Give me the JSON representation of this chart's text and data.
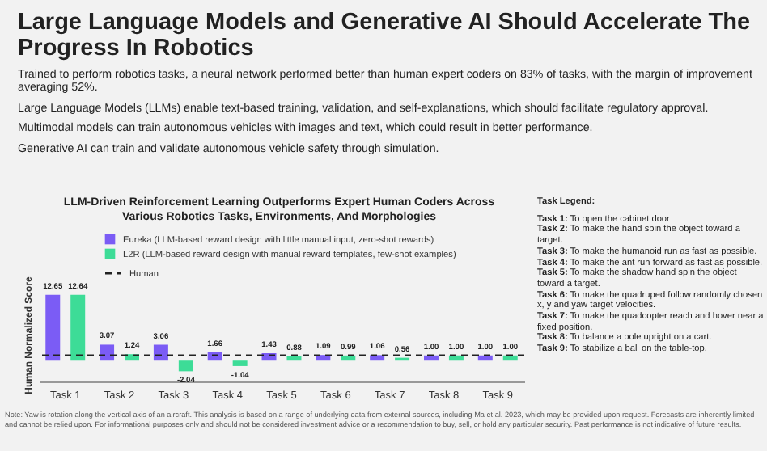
{
  "chart_data": {
    "type": "bar",
    "title": "Large Language Models and Generative AI Should Accelerate The Progress In Robotics",
    "subtitle": "LLM-Driven Reinforcement Learning Outperforms Expert Human Coders Across Various Robotics Tasks, Environments, And Morphologies",
    "ylabel": "Human Normalized Score",
    "categories": [
      "Task 1",
      "Task 2",
      "Task 3",
      "Task 4",
      "Task 5",
      "Task 6",
      "Task 7",
      "Task 8",
      "Task 9"
    ],
    "series": [
      {
        "name": "Eureka (LLM-based reward design with little manual input, zero-shot rewards)",
        "color": "#7b5cf5",
        "values": [
          12.65,
          3.07,
          3.06,
          1.66,
          1.43,
          1.09,
          1.06,
          1.0,
          1.0
        ],
        "value_labels": [
          "12.65",
          "3.07",
          "3.06",
          "1.66",
          "1.43",
          "1.09",
          "1.06",
          "1.00",
          "1.00"
        ]
      },
      {
        "name": "L2R (LLM-based reward design with manual reward templates, few-shot examples)",
        "color": "#3ddc97",
        "values": [
          12.64,
          1.24,
          -2.04,
          -1.04,
          0.88,
          0.99,
          0.56,
          1.0,
          1.0
        ],
        "value_labels": [
          "12.64",
          "1.24",
          "-2.04",
          "-1.04",
          "0.88",
          "0.99",
          "0.56",
          "1.00",
          "1.00"
        ]
      }
    ],
    "ref_lines": [
      {
        "axis": "y",
        "value": 1,
        "label": "Human",
        "color": "#222222",
        "line_style": "dashed"
      }
    ],
    "legend": "top",
    "tick_labels": "x",
    "annotations": [
      "Trained to perform robotics tasks, a neural network performed better than human expert coders on 83% of tasks, with the margin of improvement averaging 52%.",
      "Large Language Models (LLMs) enable text-based training, validation, and self-explanations, which should facilitate regulatory approval.",
      "Multimodal models can train autonomous vehicles with images and text, which could result in better performance.",
      "Generative AI can train and validate autonomous vehicle safety through simulation.",
      "Task Legend:",
      "Task 1: To open the cabinet door",
      "Task 2: To make the hand spin the object toward a target.",
      "Task 3: To make the humanoid run as fast as possible.",
      "Task 4: To make the ant run forward as fast as possible.",
      "Task 5: To make the shadow hand spin the object toward a target.",
      "Task 6: To make the quadruped follow randomly chosen x, y and yaw target velocities.",
      "Task 7: To make the quadcopter reach and hover near a fixed position.",
      "Task 8: To balance a pole upright on a cart.",
      "Task 9: To stabilize a ball on the table-top.",
      "Note: Yaw is rotation along the vertical axis of an aircraft. This analysis is based on a range of underlying data from external sources, including Ma et al. 2023, which may be provided upon request. Forecasts are inherently limited and cannot be relied upon. For informational purposes only and should not be considered investment advice or a recommendation to buy, sell, or hold any particular security. Past performance is not indicative of future results."
    ]
  }
}
